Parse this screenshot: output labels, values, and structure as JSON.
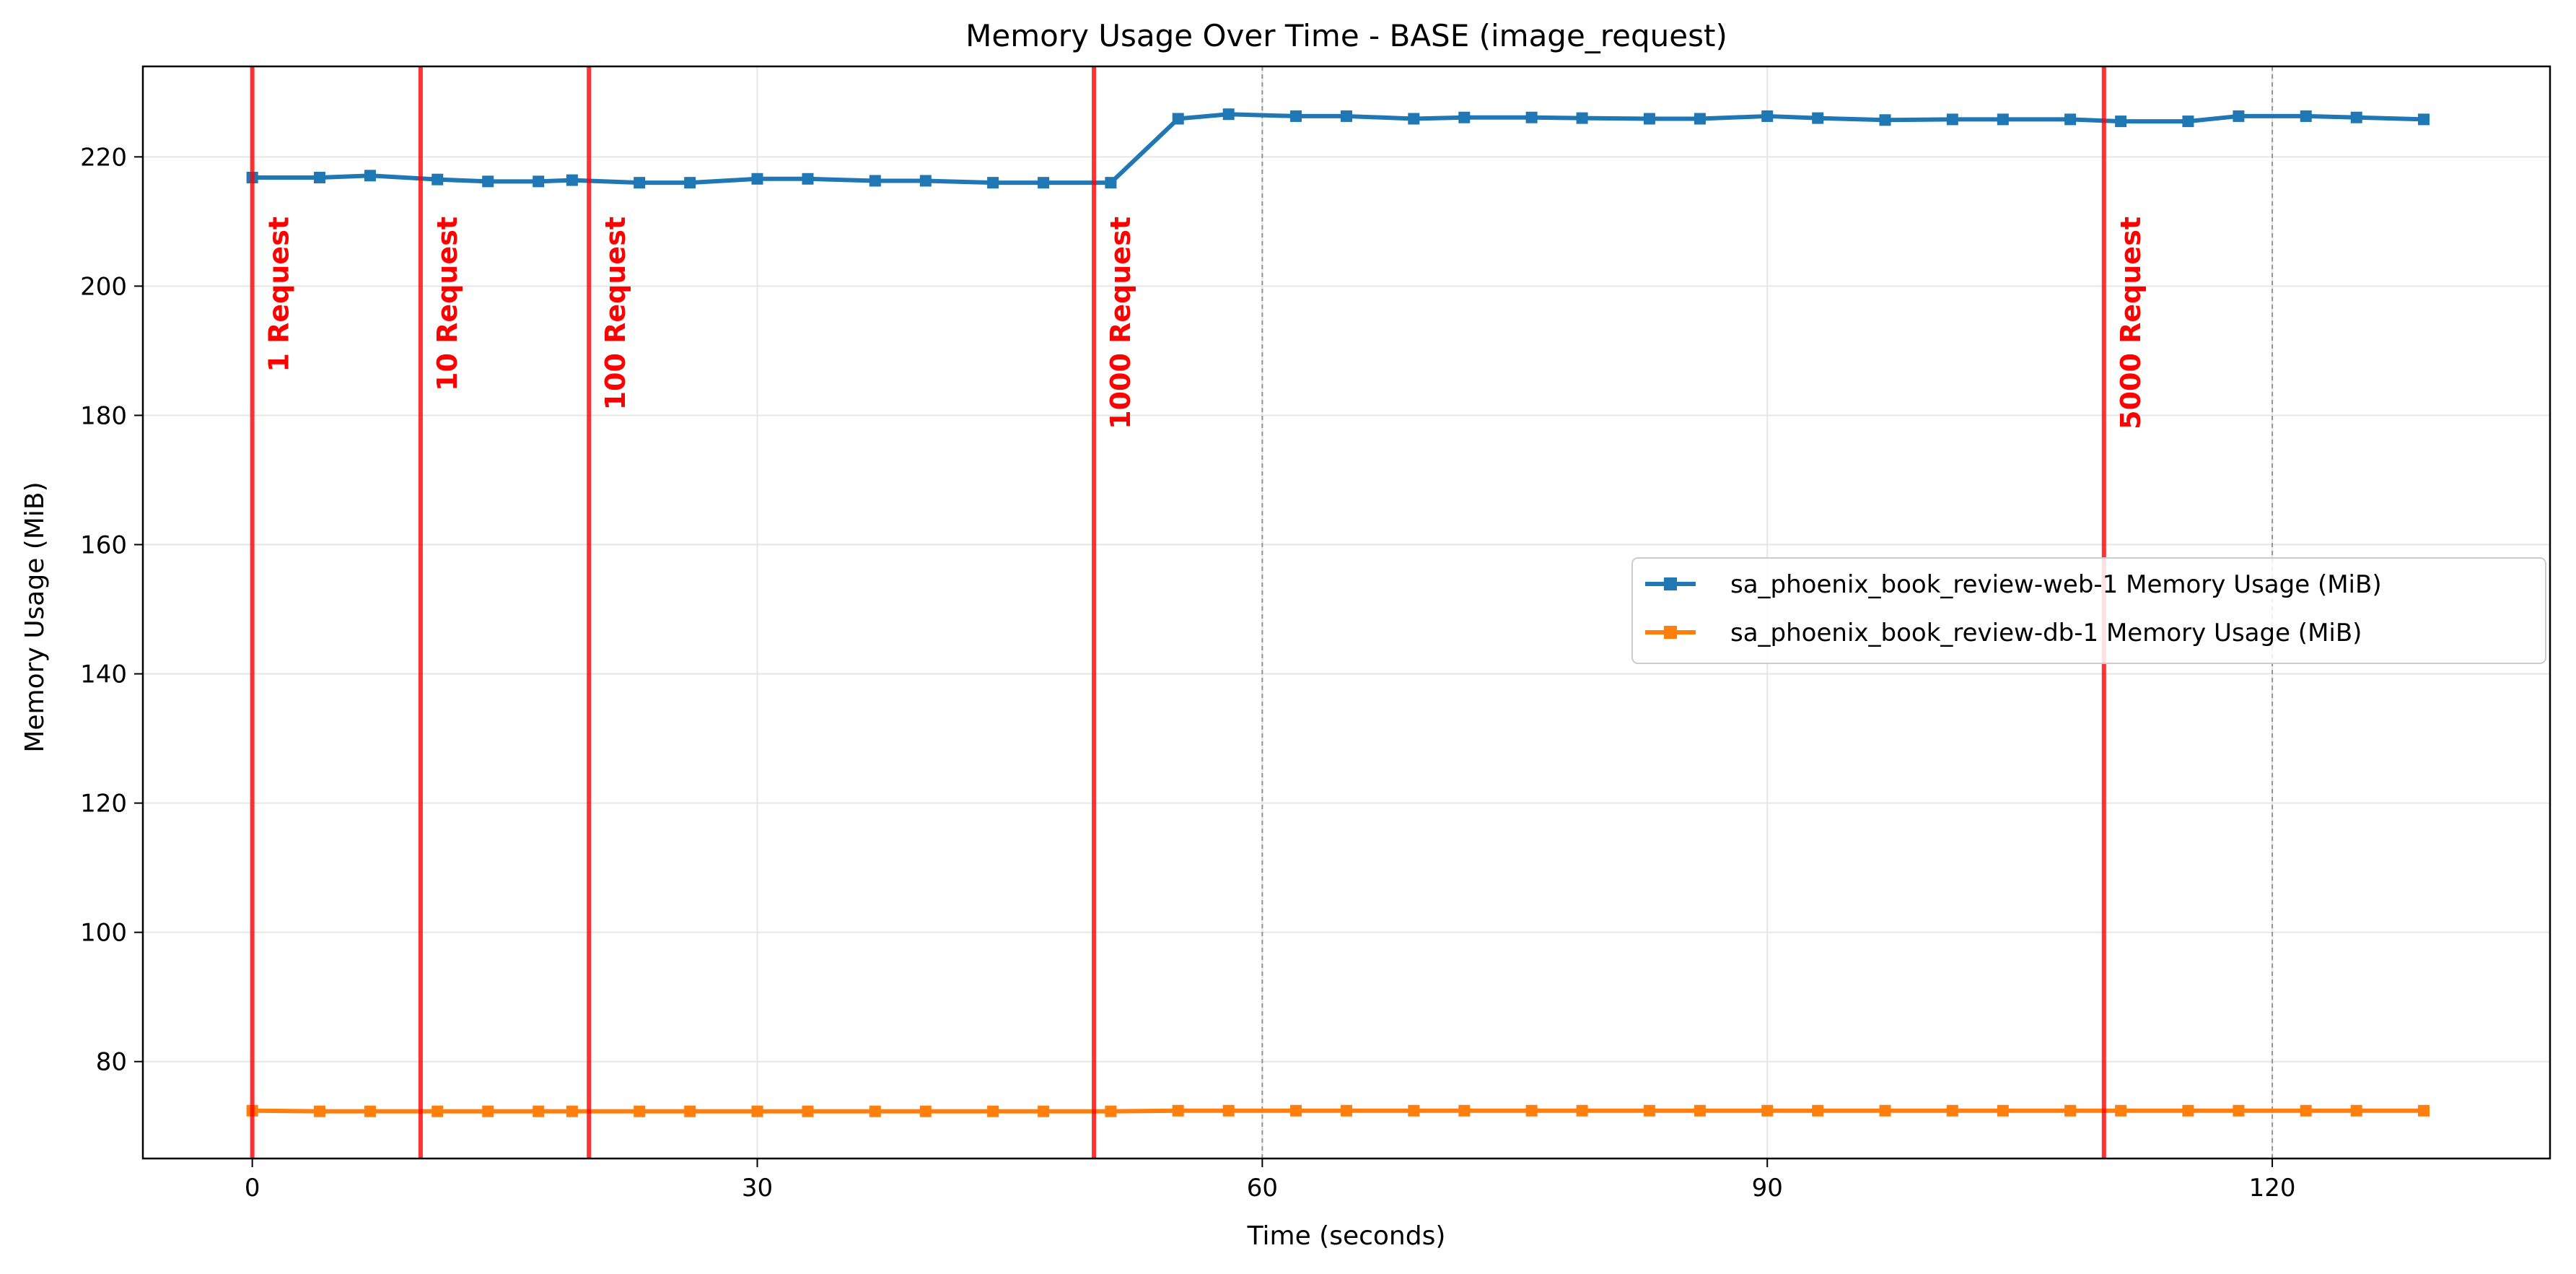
{
  "chart_data": {
    "type": "line",
    "title": "Memory Usage Over Time - BASE (image_request)",
    "xlabel": "Time (seconds)",
    "ylabel": "Memory Usage (MiB)",
    "xlim": [
      -6.5,
      136.5
    ],
    "ylim": [
      65,
      234
    ],
    "xticks": [
      0,
      30,
      60,
      90,
      120
    ],
    "yticks": [
      80,
      100,
      120,
      140,
      160,
      180,
      200,
      220
    ],
    "grid": true,
    "legend_position": "center-right",
    "x": [
      0,
      4,
      7,
      11,
      14,
      17,
      19,
      23,
      26,
      30,
      33,
      37,
      40,
      44,
      47,
      51,
      55,
      58,
      62,
      65,
      69,
      72,
      76,
      79,
      83,
      86,
      90,
      93,
      97,
      101,
      104,
      108,
      111,
      115,
      118,
      122,
      125,
      129
    ],
    "series": [
      {
        "name": "sa_phoenix_book_review-web-1 Memory Usage (MiB)",
        "color": "#1f77b4",
        "values": [
          216.8,
          216.8,
          217.1,
          216.5,
          216.2,
          216.2,
          216.4,
          216.0,
          216.0,
          216.6,
          216.6,
          216.3,
          216.3,
          216.0,
          216.0,
          216.0,
          225.9,
          226.6,
          226.3,
          226.3,
          225.9,
          226.1,
          226.1,
          226.0,
          225.9,
          225.9,
          226.3,
          226.0,
          225.7,
          225.8,
          225.8,
          225.8,
          225.5,
          225.5,
          226.3,
          226.3,
          226.1,
          225.8
        ]
      },
      {
        "name": "sa_phoenix_book_review-db-1 Memory Usage (MiB)",
        "color": "#ff7f0e",
        "values": [
          72.4,
          72.3,
          72.3,
          72.3,
          72.3,
          72.3,
          72.3,
          72.3,
          72.3,
          72.3,
          72.3,
          72.3,
          72.3,
          72.3,
          72.3,
          72.3,
          72.4,
          72.4,
          72.4,
          72.4,
          72.4,
          72.4,
          72.4,
          72.4,
          72.4,
          72.4,
          72.4,
          72.4,
          72.4,
          72.4,
          72.4,
          72.4,
          72.4,
          72.4,
          72.4,
          72.4,
          72.4,
          72.4
        ]
      }
    ],
    "annotations": [
      {
        "x": 0,
        "label": "1 Request",
        "color": "#ff0000"
      },
      {
        "x": 10,
        "label": "10 Request",
        "color": "#ff0000"
      },
      {
        "x": 20,
        "label": "100 Request",
        "color": "#ff0000"
      },
      {
        "x": 50,
        "label": "1000 Request",
        "color": "#ff0000"
      },
      {
        "x": 110,
        "label": "5000 Request",
        "color": "#ff0000"
      }
    ],
    "reference_lines": [
      {
        "x": 60,
        "style": "dashed",
        "color": "#808080"
      },
      {
        "x": 120,
        "style": "dashed",
        "color": "#808080"
      }
    ]
  }
}
